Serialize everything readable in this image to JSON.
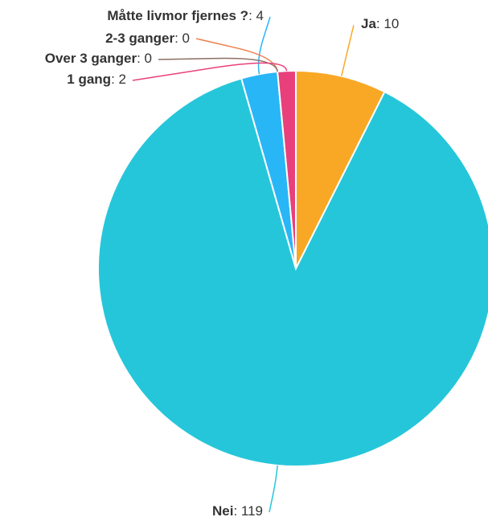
{
  "chart_data": {
    "type": "pie",
    "slices": [
      {
        "name": "Ja",
        "value": 10,
        "color": "#f9a825"
      },
      {
        "name": "Nei",
        "value": 119,
        "color": "#26c6da"
      },
      {
        "name": "Måtte livmor fjernes ?",
        "value": 4,
        "color": "#29b6f6"
      },
      {
        "name": "2-3 ganger",
        "value": 0,
        "color": "#ef7f4d"
      },
      {
        "name": "Over 3 ganger",
        "value": 0,
        "color": "#8d6e63"
      },
      {
        "name": "1 gang",
        "value": 2,
        "color": "#e8407b"
      }
    ],
    "labels": [
      {
        "name": "Ja",
        "sep": ": ",
        "value": "10"
      },
      {
        "name": "Nei",
        "sep": ": ",
        "value": "119"
      },
      {
        "name": "Måtte livmor fjernes ?",
        "sep": ": ",
        "value": "4"
      },
      {
        "name": "2-3 ganger",
        "sep": ": ",
        "value": "0"
      },
      {
        "name": "Over 3 ganger",
        "sep": ": ",
        "value": "0"
      },
      {
        "name": "1 gang",
        "sep": ": ",
        "value": "2"
      }
    ]
  }
}
